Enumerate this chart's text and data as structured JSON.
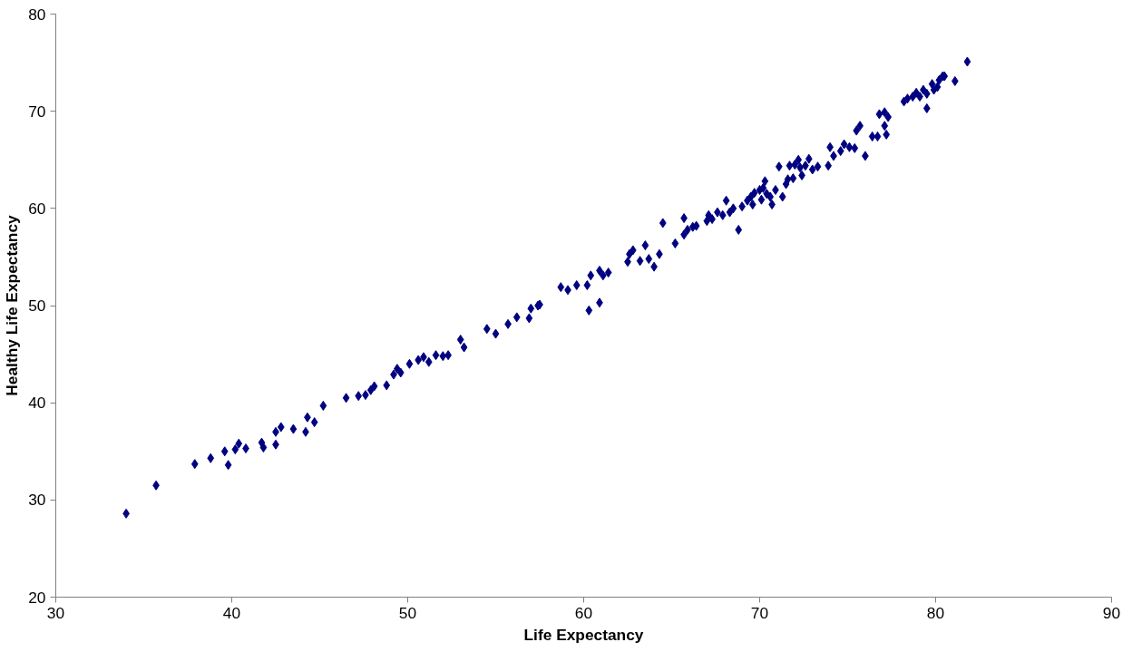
{
  "chart_data": {
    "type": "scatter",
    "xlabel": "Life Expectancy",
    "ylabel": "Healthy Life Expectancy",
    "xlim": [
      30,
      90
    ],
    "xticks": [
      30,
      40,
      50,
      60,
      70,
      80,
      90
    ],
    "ylim": [
      20,
      80
    ],
    "yticks": [
      20,
      30,
      40,
      50,
      60,
      70,
      80
    ],
    "grid": false,
    "marker": "diamond",
    "series": [
      {
        "color": "#000080",
        "x": [
          34.0,
          35.7,
          37.9,
          38.8,
          39.6,
          39.8,
          40.2,
          40.4,
          40.8,
          41.7,
          41.8,
          42.5,
          42.5,
          42.8,
          43.5,
          44.2,
          44.3,
          44.7,
          45.2,
          46.5,
          47.2,
          47.6,
          47.9,
          48.1,
          48.8,
          49.2,
          49.4,
          49.6,
          50.1,
          50.6,
          50.9,
          51.2,
          51.6,
          52.0,
          52.3,
          53.0,
          53.2,
          54.5,
          55.0,
          55.7,
          56.2,
          56.9,
          57.0,
          57.4,
          57.5,
          58.7,
          59.1,
          59.6,
          60.2,
          60.3,
          60.4,
          60.9,
          60.9,
          61.1,
          61.4,
          62.5,
          62.6,
          62.8,
          63.2,
          63.5,
          63.7,
          64.0,
          64.3,
          64.5,
          65.2,
          65.7,
          65.7,
          65.9,
          66.2,
          66.4,
          67.0,
          67.1,
          67.3,
          67.6,
          67.9,
          68.1,
          68.3,
          68.5,
          68.8,
          69.0,
          69.3,
          69.5,
          69.6,
          69.7,
          70.0,
          70.1,
          70.2,
          70.3,
          70.4,
          70.6,
          70.7,
          70.9,
          71.1,
          71.3,
          71.5,
          71.6,
          71.7,
          71.9,
          72.0,
          72.2,
          72.3,
          72.4,
          72.6,
          72.8,
          73.0,
          73.3,
          73.9,
          74.0,
          74.2,
          74.6,
          74.8,
          75.1,
          75.4,
          75.5,
          75.7,
          76.0,
          76.4,
          76.7,
          76.8,
          77.1,
          77.1,
          77.2,
          77.3,
          78.2,
          78.4,
          78.7,
          78.9,
          79.1,
          79.3,
          79.5,
          79.5,
          79.8,
          79.9,
          80.1,
          80.2,
          80.4,
          80.5,
          81.1,
          81.8
        ],
        "values": [
          28.6,
          31.5,
          33.7,
          34.3,
          35.0,
          33.6,
          35.2,
          35.8,
          35.3,
          35.9,
          35.4,
          35.7,
          37.0,
          37.5,
          37.3,
          37.0,
          38.5,
          38.0,
          39.7,
          40.5,
          40.7,
          40.8,
          41.3,
          41.7,
          41.8,
          42.9,
          43.5,
          43.1,
          44.0,
          44.4,
          44.7,
          44.2,
          44.9,
          44.8,
          44.9,
          46.5,
          45.7,
          47.6,
          47.1,
          48.1,
          48.8,
          48.7,
          49.7,
          50.0,
          50.1,
          51.9,
          51.6,
          52.1,
          52.1,
          49.5,
          53.1,
          50.3,
          53.6,
          53.1,
          53.4,
          54.5,
          55.3,
          55.7,
          54.6,
          56.2,
          54.8,
          54.0,
          55.3,
          58.5,
          56.4,
          57.3,
          59.0,
          57.8,
          58.1,
          58.2,
          58.7,
          59.3,
          58.9,
          59.6,
          59.3,
          60.8,
          59.6,
          60.0,
          57.8,
          60.2,
          60.8,
          61.2,
          60.4,
          61.6,
          61.9,
          60.9,
          62.1,
          62.8,
          61.5,
          61.2,
          60.4,
          61.9,
          64.3,
          61.2,
          62.5,
          63.0,
          64.4,
          63.1,
          64.5,
          65.0,
          64.2,
          63.4,
          64.4,
          65.1,
          64.0,
          64.3,
          64.4,
          66.3,
          65.4,
          65.9,
          66.6,
          66.3,
          66.2,
          68.0,
          68.5,
          65.4,
          67.4,
          67.4,
          69.7,
          69.9,
          68.5,
          67.6,
          69.4,
          71.0,
          71.3,
          71.5,
          71.9,
          71.5,
          72.2,
          70.3,
          71.8,
          72.8,
          72.2,
          72.5,
          73.2,
          73.6,
          73.6,
          73.1,
          75.1
        ]
      }
    ]
  }
}
